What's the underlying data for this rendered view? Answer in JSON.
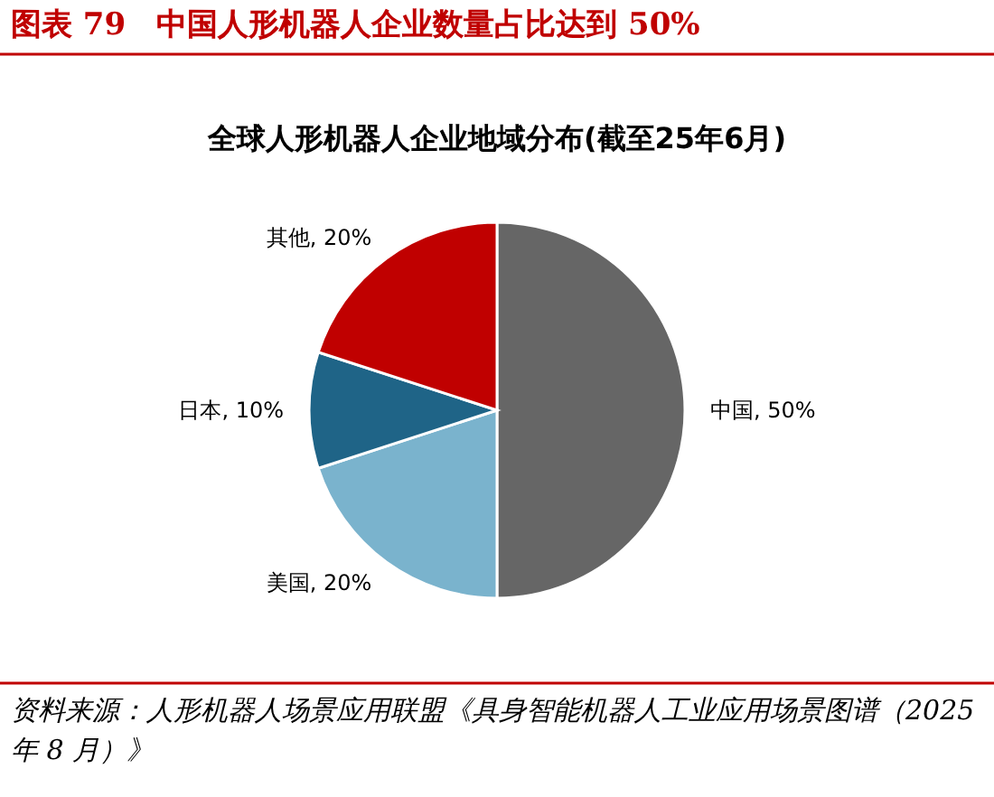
{
  "chart_data": {
    "type": "pie",
    "title": "图表 79　中国人形机器人企业数量占比达到 50%",
    "subtitle": "全球人形机器人企业地域分布(截至25年6月)",
    "categories": [
      "中国",
      "美国",
      "日本",
      "其他"
    ],
    "values": [
      50,
      20,
      10,
      20
    ],
    "value_labels": [
      "50%",
      "20%",
      "10%",
      "20%"
    ],
    "colors": [
      "#666666",
      "#7ab3cd",
      "#1f6487",
      "#c00000"
    ],
    "legend": false,
    "annotations": [
      "资料来源：人形机器人场景应用联盟《具身智能机器人工业应用场景图谱（2025 年 8 月）》"
    ]
  }
}
